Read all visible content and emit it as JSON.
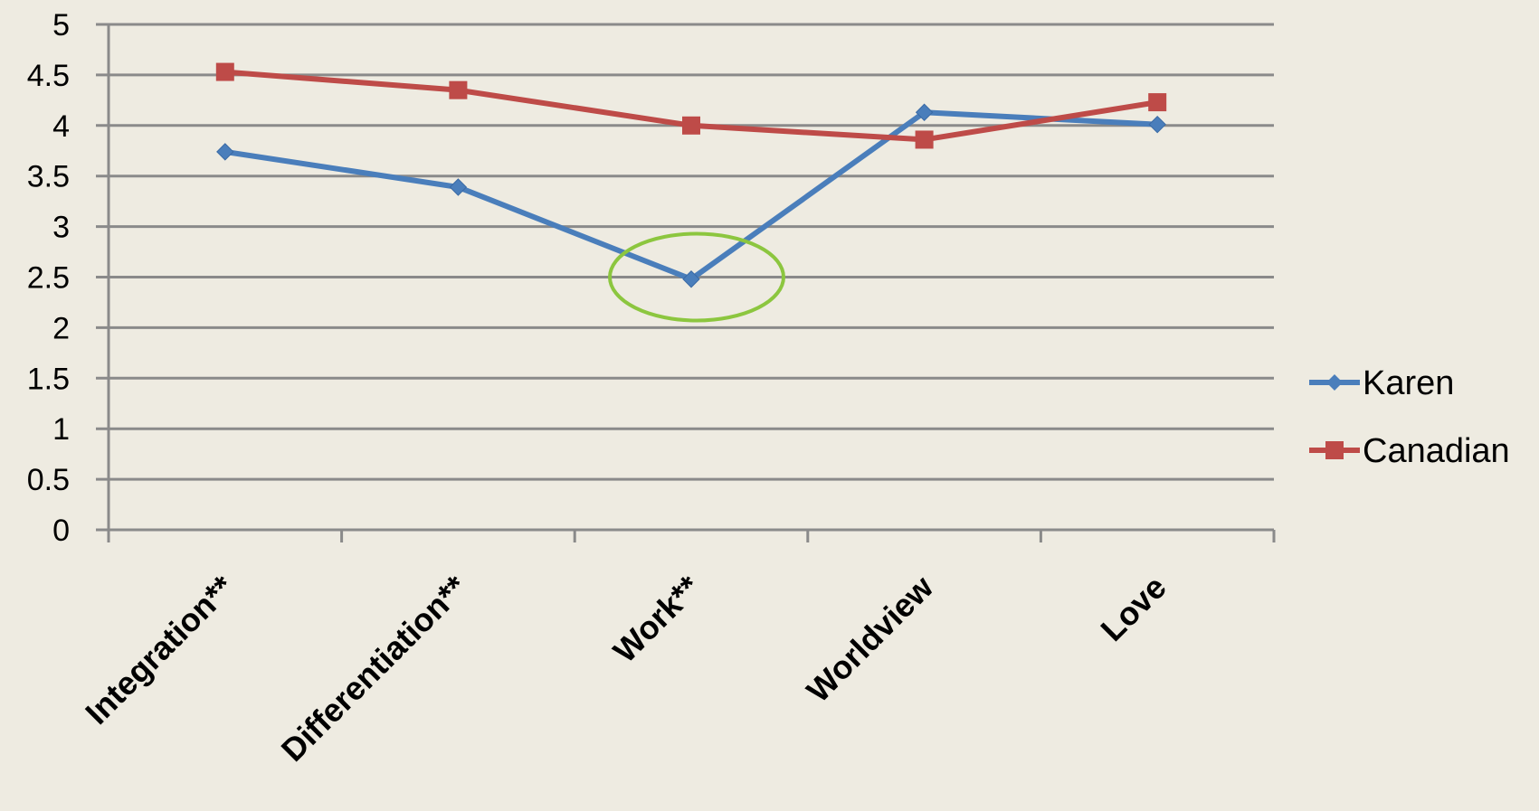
{
  "chart_data": {
    "type": "line",
    "categories": [
      "Integration**",
      "Differentiation**",
      "Work**",
      "Worldview",
      "Love"
    ],
    "y_ticks": [
      "0",
      "0.5",
      "1",
      "1.5",
      "2",
      "2.5",
      "3",
      "3.5",
      "4",
      "4.5",
      "5"
    ],
    "ylim": [
      0,
      5
    ],
    "grid": true,
    "legend_position": "right",
    "series": [
      {
        "name": "Karen",
        "values": [
          3.74,
          3.39,
          2.48,
          4.13,
          4.01
        ],
        "color": "#4a7ebb",
        "marker": "diamond"
      },
      {
        "name": "Canadian",
        "values": [
          4.53,
          4.35,
          4.0,
          3.86,
          4.23
        ],
        "color": "#be4b48",
        "marker": "square"
      }
    ],
    "annotations": [
      {
        "type": "ellipse",
        "category": "Work**",
        "value": 2.5,
        "color": "#8cc63f"
      }
    ]
  }
}
